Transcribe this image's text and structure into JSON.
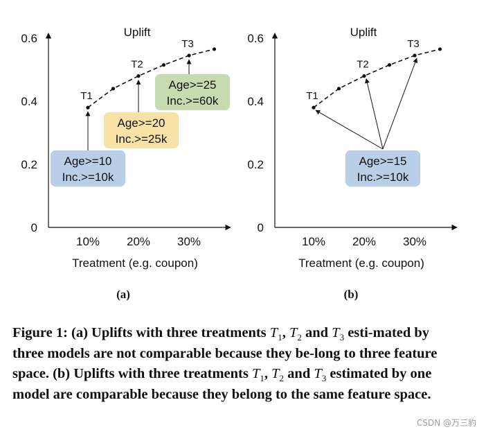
{
  "chart_data": [
    {
      "type": "line",
      "panel_label": "(a)",
      "title": "Uplift",
      "xlabel": "Treatment (e.g. coupon)",
      "ylabel": "",
      "ylim": [
        0,
        0.6
      ],
      "y_ticks": [
        "0",
        "0.2",
        "0.4",
        "0.6"
      ],
      "x_ticks": [
        "10%",
        "20%",
        "30%"
      ],
      "x": [
        0.1,
        0.15,
        0.2,
        0.25,
        0.3,
        0.35
      ],
      "y": [
        0.38,
        0.44,
        0.48,
        0.515,
        0.545,
        0.565
      ],
      "treatments": [
        {
          "label": "T1",
          "x": 0.1,
          "y": 0.38
        },
        {
          "label": "T2",
          "x": 0.2,
          "y": 0.48
        },
        {
          "label": "T3",
          "x": 0.3,
          "y": 0.545
        }
      ],
      "segments": [
        {
          "line1": "Age>=10",
          "line2": "Inc.>=10k",
          "color": "#b9cfe8",
          "target": "T1"
        },
        {
          "line1": "Age>=20",
          "line2": "Inc.>=25k",
          "color": "#f9e2a6",
          "target": "T2"
        },
        {
          "line1": "Age>=25",
          "line2": "Inc.>=60k",
          "color": "#c6dcb0",
          "target": "T3"
        }
      ]
    },
    {
      "type": "line",
      "panel_label": "(b)",
      "title": "Uplift",
      "xlabel": "Treatment (e.g. coupon)",
      "ylabel": "",
      "ylim": [
        0,
        0.6
      ],
      "y_ticks": [
        "0",
        "0.2",
        "0.4",
        "0.6"
      ],
      "x_ticks": [
        "10%",
        "20%",
        "30%"
      ],
      "x": [
        0.1,
        0.15,
        0.2,
        0.25,
        0.3,
        0.35
      ],
      "y": [
        0.38,
        0.44,
        0.48,
        0.515,
        0.545,
        0.565
      ],
      "treatments": [
        {
          "label": "T1",
          "x": 0.1,
          "y": 0.38
        },
        {
          "label": "T2",
          "x": 0.2,
          "y": 0.48
        },
        {
          "label": "T3",
          "x": 0.3,
          "y": 0.545
        }
      ],
      "segments": [
        {
          "line1": "Age>=15",
          "line2": "Inc.>=10k",
          "color": "#b9cfe8",
          "target": "all"
        }
      ]
    }
  ],
  "caption": {
    "lead": "Figure 1: (a) Uplifts with three treatments ",
    "t1": "T",
    "s1": "1",
    "comma": ", ",
    "t2": "T",
    "s2": "2",
    "and1": " and ",
    "t3": "T",
    "s3": "3",
    "mid": " esti-mated by three models are not comparable because they be-long to three feature space. (b) Uplifts with three treatments ",
    "u1": "T",
    "v1": "1",
    "comma2": ", ",
    "u2": "T",
    "v2": "2",
    "and2": " and ",
    "u3": "T",
    "v3": "3",
    "tail": " estimated by one model are comparable because they belong to the same feature space."
  },
  "watermark": "CSDN @万三豹"
}
